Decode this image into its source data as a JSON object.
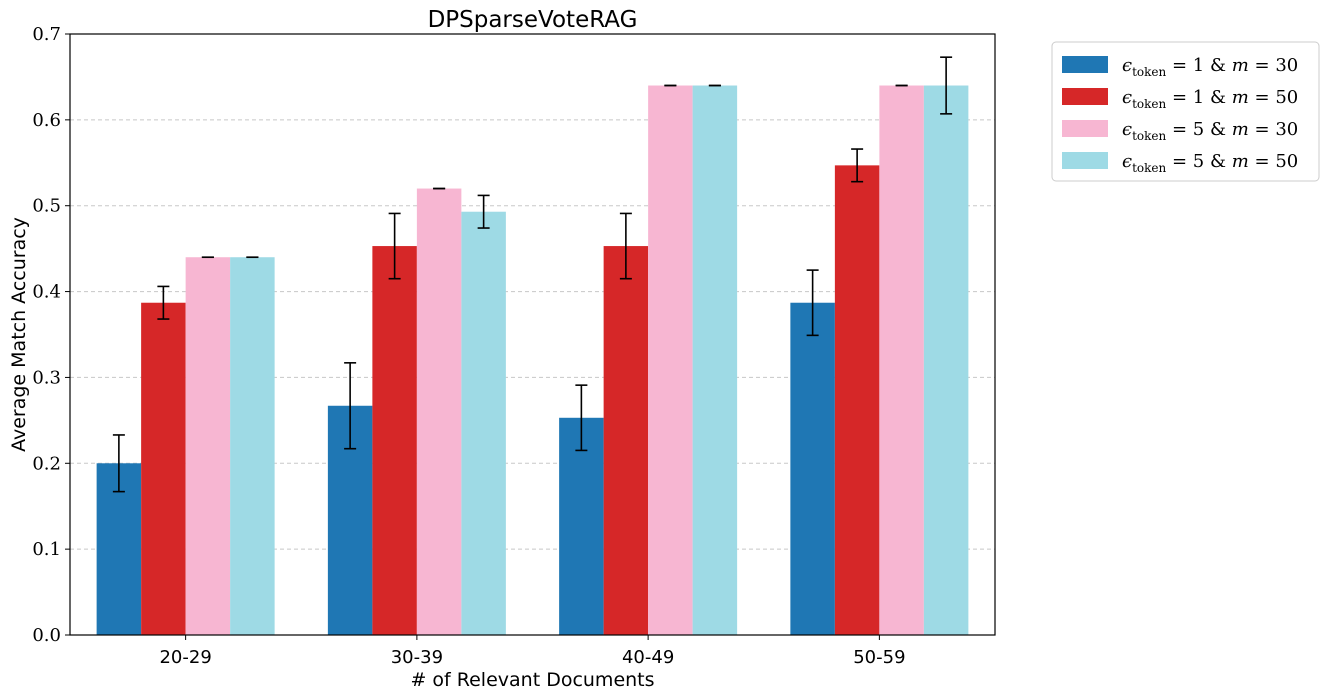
{
  "chart_data": {
    "type": "bar",
    "title": "DPSparseVoteRAG",
    "xlabel": "# of Relevant Documents",
    "ylabel": "Average Match Accuracy",
    "categories": [
      "20-29",
      "30-39",
      "40-49",
      "50-59"
    ],
    "ylim": [
      0.0,
      0.7
    ],
    "yticks": [
      "0.0",
      "0.1",
      "0.2",
      "0.3",
      "0.4",
      "0.5",
      "0.6",
      "0.7"
    ],
    "grid": "horizontal dashed",
    "legend_position": "outside top-right",
    "series": [
      {
        "name": "ε_token = 1 & m = 30",
        "legend": {
          "eps": "ϵ",
          "sub": "token",
          "eq1": " = 1 ",
          "amp": "&",
          "m": "m",
          "eq2": " = 30"
        },
        "color": "#1f77b4",
        "values": [
          0.2,
          0.267,
          0.253,
          0.387
        ],
        "errors": [
          0.033,
          0.05,
          0.038,
          0.038
        ]
      },
      {
        "name": "ε_token = 1 & m = 50",
        "legend": {
          "eps": "ϵ",
          "sub": "token",
          "eq1": " = 1 ",
          "amp": "&",
          "m": "m",
          "eq2": " = 50"
        },
        "color": "#d62728",
        "values": [
          0.387,
          0.453,
          0.453,
          0.547
        ],
        "errors": [
          0.019,
          0.038,
          0.038,
          0.019
        ]
      },
      {
        "name": "ε_token = 5 & m = 30",
        "legend": {
          "eps": "ϵ",
          "sub": "token",
          "eq1": " = 5 ",
          "amp": "&",
          "m": "m",
          "eq2": " = 30"
        },
        "color": "#f7b6d2",
        "values": [
          0.44,
          0.52,
          0.64,
          0.64
        ],
        "errors": [
          0.0,
          0.0,
          0.0,
          0.0
        ]
      },
      {
        "name": "ε_token = 5 & m = 50",
        "legend": {
          "eps": "ϵ",
          "sub": "token",
          "eq1": " = 5 ",
          "amp": "&",
          "m": "m",
          "eq2": " = 50"
        },
        "color": "#9edae5",
        "values": [
          0.44,
          0.493,
          0.64,
          0.64
        ],
        "errors": [
          0.0,
          0.019,
          0.0,
          0.033
        ]
      }
    ]
  }
}
